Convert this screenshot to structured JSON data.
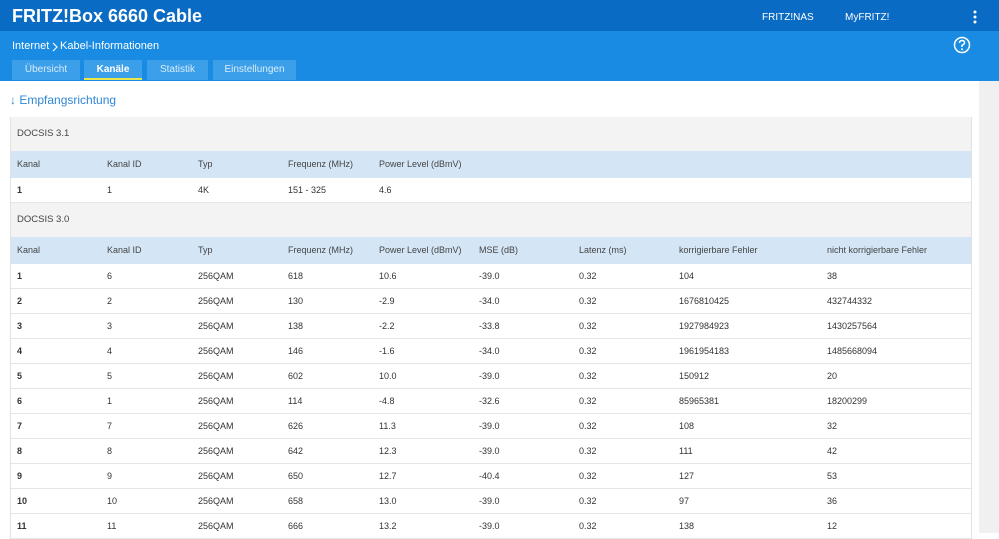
{
  "header": {
    "title": "FRITZ!Box 6660 Cable",
    "links": [
      "FRITZ!NAS",
      "MyFRITZ!"
    ]
  },
  "breadcrumb": [
    "Internet",
    "Kabel-Informationen"
  ],
  "tabs": [
    "Übersicht",
    "Kanäle",
    "Statistik",
    "Einstellungen"
  ],
  "active_tab": 1,
  "section_title": "↓ Empfangsrichtung",
  "tables": [
    {
      "title": "DOCSIS 3.1",
      "columns": [
        "Kanal",
        "Kanal ID",
        "Typ",
        "Frequenz (MHz)",
        "Power Level (dBmV)"
      ],
      "rows": [
        [
          "1",
          "1",
          "4K",
          "151 - 325",
          "4.6"
        ]
      ]
    },
    {
      "title": "DOCSIS 3.0",
      "columns": [
        "Kanal",
        "Kanal ID",
        "Typ",
        "Frequenz (MHz)",
        "Power Level (dBmV)",
        "MSE (dB)",
        "Latenz (ms)",
        "korrigierbare Fehler",
        "nicht korrigierbare Fehler"
      ],
      "rows": [
        [
          "1",
          "6",
          "256QAM",
          "618",
          "10.6",
          "-39.0",
          "0.32",
          "104",
          "38"
        ],
        [
          "2",
          "2",
          "256QAM",
          "130",
          "-2.9",
          "-34.0",
          "0.32",
          "1676810425",
          "432744332"
        ],
        [
          "3",
          "3",
          "256QAM",
          "138",
          "-2.2",
          "-33.8",
          "0.32",
          "1927984923",
          "1430257564"
        ],
        [
          "4",
          "4",
          "256QAM",
          "146",
          "-1.6",
          "-34.0",
          "0.32",
          "1961954183",
          "1485668094"
        ],
        [
          "5",
          "5",
          "256QAM",
          "602",
          "10.0",
          "-39.0",
          "0.32",
          "150912",
          "20"
        ],
        [
          "6",
          "1",
          "256QAM",
          "114",
          "-4.8",
          "-32.6",
          "0.32",
          "85965381",
          "18200299"
        ],
        [
          "7",
          "7",
          "256QAM",
          "626",
          "11.3",
          "-39.0",
          "0.32",
          "108",
          "32"
        ],
        [
          "8",
          "8",
          "256QAM",
          "642",
          "12.3",
          "-39.0",
          "0.32",
          "111",
          "42"
        ],
        [
          "9",
          "9",
          "256QAM",
          "650",
          "12.7",
          "-40.4",
          "0.32",
          "127",
          "53"
        ],
        [
          "10",
          "10",
          "256QAM",
          "658",
          "13.0",
          "-39.0",
          "0.32",
          "97",
          "36"
        ],
        [
          "11",
          "11",
          "256QAM",
          "666",
          "13.2",
          "-39.0",
          "0.32",
          "138",
          "12"
        ]
      ]
    }
  ]
}
